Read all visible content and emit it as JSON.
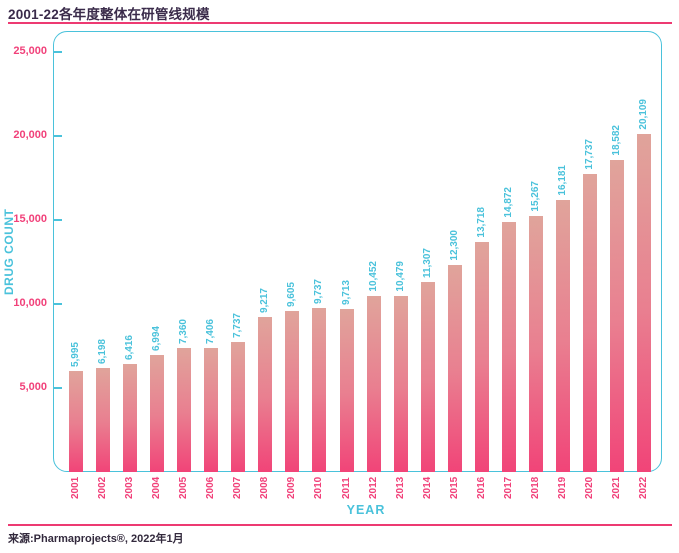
{
  "page": {
    "title": "2001-22各年度整体在研管线规模",
    "source": "来源:Pharmaprojects®, 2022年1月"
  },
  "chart_data": {
    "type": "bar",
    "title": "2001-22各年度整体在研管线规模",
    "xlabel": "YEAR",
    "ylabel": "DRUG COUNT",
    "ylim": [
      0,
      26250
    ],
    "yticks": [
      5000,
      10000,
      15000,
      20000,
      25000
    ],
    "ytick_labels": [
      "5,000",
      "10,000",
      "15,000",
      "20,000",
      "25,000"
    ],
    "grid": false,
    "legend_position": "none",
    "categories": [
      "2001",
      "2002",
      "2003",
      "2004",
      "2005",
      "2006",
      "2007",
      "2008",
      "2009",
      "2010",
      "2011",
      "2012",
      "2013",
      "2014",
      "2015",
      "2016",
      "2017",
      "2018",
      "2019",
      "2020",
      "2021",
      "2022"
    ],
    "values": [
      5995,
      6198,
      6416,
      6994,
      7360,
      7406,
      7737,
      9217,
      9605,
      9737,
      9713,
      10452,
      10479,
      11307,
      12300,
      13718,
      14872,
      15267,
      16181,
      17737,
      18582,
      20109
    ],
    "value_labels": [
      "5,995",
      "6,198",
      "6,416",
      "6,994",
      "7,360",
      "7,406",
      "7,737",
      "9,217",
      "9,605",
      "9,737",
      "9,713",
      "10,452",
      "10,479",
      "11,307",
      "12,300",
      "13,718",
      "14,872",
      "15,267",
      "16,181",
      "17,737",
      "18,582",
      "20,109"
    ],
    "colors": {
      "bar_gradient_top": "#E0A49B",
      "bar_gradient_bottom": "#F14478",
      "accent_pink": "#F1417A",
      "rule_pink": "#ED3A72",
      "teal": "#4AC2DB",
      "title_text": "#3A2B4A"
    }
  }
}
